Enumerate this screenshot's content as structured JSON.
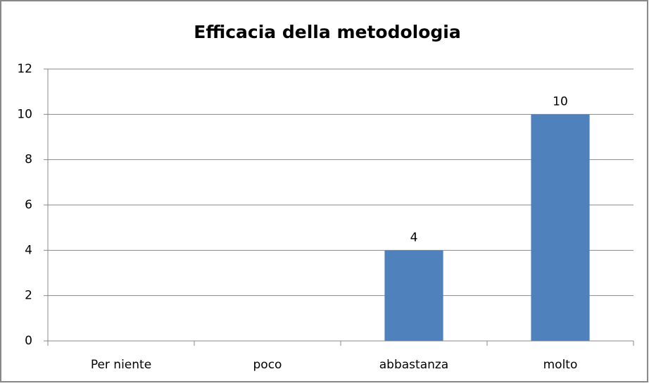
{
  "chart_data": {
    "type": "bar",
    "title": "Efficacia della metodologia",
    "categories": [
      "Per niente",
      "poco",
      "abbastanza",
      "molto"
    ],
    "values": [
      0,
      0,
      4,
      10
    ],
    "color": "#4f81bd",
    "ylim": [
      0,
      12
    ],
    "yticks": [
      0,
      2,
      4,
      6,
      8,
      10,
      12
    ],
    "grid": true
  }
}
